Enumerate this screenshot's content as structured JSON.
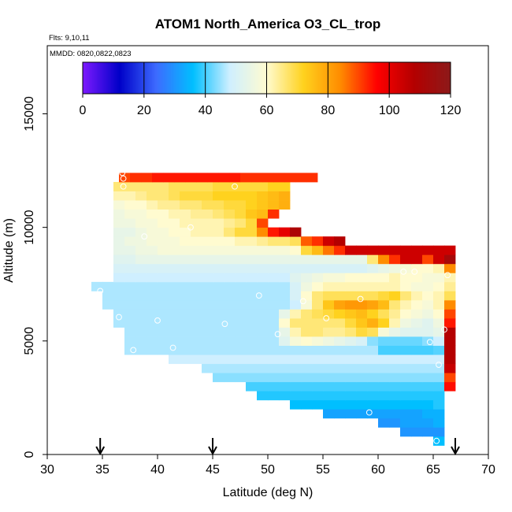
{
  "chart_data": {
    "type": "heatmap",
    "title": "ATOM1 North_America O3_CL_trop",
    "flights_label": "Flts: 9,10,11",
    "dates_label": "MMDD: 0820,0822,0823",
    "xlabel": "Latitude (deg N)",
    "ylabel": "Altitude (m)",
    "xlim": [
      30,
      70
    ],
    "ylim": [
      0,
      18000
    ],
    "x_ticks": [
      30,
      35,
      40,
      45,
      50,
      55,
      60,
      65,
      70
    ],
    "y_ticks": [
      0,
      5000,
      10000,
      15000
    ],
    "colorbar": {
      "range": [
        0,
        120
      ],
      "ticks": [
        0,
        20,
        40,
        60,
        80,
        100,
        120
      ],
      "palette": [
        "#7d1aff",
        "#0000c8",
        "#3d6bff",
        "#00bfff",
        "#cfefff",
        "#fffbd0",
        "#ffd21e",
        "#ff8c00",
        "#ff0000",
        "#b40000",
        "#8c1a1a"
      ]
    },
    "cell_size": {
      "lat": 1.0,
      "alt": 400
    },
    "rows": [
      {
        "alt": 600,
        "lat_start": 65,
        "values": [
          36
        ]
      },
      {
        "alt": 1000,
        "lat_start": 62,
        "values": [
          30,
          30,
          30,
          30
        ]
      },
      {
        "alt": 1400,
        "lat_start": 60,
        "values": [
          30,
          30,
          32,
          32,
          32,
          34
        ]
      },
      {
        "alt": 1800,
        "lat_start": 55,
        "values": [
          32,
          32,
          32,
          32,
          32,
          32,
          32,
          32,
          32,
          34,
          34
        ]
      },
      {
        "alt": 2200,
        "lat_start": 52,
        "values": [
          36,
          36,
          36,
          36,
          36,
          36,
          36,
          36,
          36,
          36,
          36,
          36,
          36,
          38
        ]
      },
      {
        "alt": 2600,
        "lat_start": 49,
        "values": [
          38,
          38,
          38,
          38,
          38,
          38,
          38,
          38,
          38,
          38,
          38,
          38,
          38,
          38,
          38,
          38,
          38
        ]
      },
      {
        "alt": 3000,
        "lat_start": 48,
        "values": [
          40,
          40,
          40,
          40,
          40,
          40,
          40,
          40,
          40,
          40,
          40,
          40,
          40,
          40,
          40,
          40,
          40,
          40,
          95
        ]
      },
      {
        "alt": 3400,
        "lat_start": 45,
        "values": [
          44,
          44,
          44,
          44,
          44,
          44,
          44,
          44,
          44,
          44,
          44,
          44,
          44,
          44,
          44,
          44,
          44,
          44,
          44,
          44,
          44,
          90
        ]
      },
      {
        "alt": 3800,
        "lat_start": 44,
        "values": [
          46,
          46,
          46,
          46,
          46,
          46,
          46,
          46,
          46,
          46,
          46,
          46,
          46,
          46,
          46,
          46,
          46,
          46,
          46,
          46,
          46,
          46,
          105
        ]
      },
      {
        "alt": 4200,
        "lat_start": 41,
        "values": [
          48,
          48,
          48,
          48,
          48,
          48,
          48,
          48,
          48,
          48,
          48,
          48,
          48,
          48,
          48,
          48,
          48,
          48,
          48,
          48,
          48,
          48,
          48,
          48,
          48,
          108
        ]
      },
      {
        "alt": 4600,
        "lat_start": 37,
        "values": [
          46,
          46,
          46,
          46,
          46,
          46,
          46,
          46,
          46,
          46,
          46,
          46,
          46,
          46,
          46,
          46,
          46,
          46,
          46,
          46,
          46,
          46,
          46,
          40,
          40,
          40,
          40,
          40,
          41,
          108
        ]
      },
      {
        "alt": 5000,
        "lat_start": 37,
        "values": [
          46,
          46,
          46,
          46,
          46,
          46,
          46,
          46,
          46,
          46,
          46,
          46,
          46,
          46,
          52,
          58,
          60,
          58,
          56,
          54,
          52,
          50,
          44,
          42,
          42,
          42,
          42,
          44,
          48,
          108
        ]
      },
      {
        "alt": 5400,
        "lat_start": 37,
        "values": [
          46,
          46,
          46,
          46,
          46,
          46,
          46,
          46,
          46,
          46,
          46,
          46,
          46,
          46,
          54,
          62,
          66,
          66,
          64,
          64,
          66,
          70,
          68,
          58,
          54,
          52,
          52,
          52,
          54,
          108
        ]
      },
      {
        "alt": 5800,
        "lat_start": 36,
        "values": [
          46,
          46,
          46,
          46,
          46,
          46,
          46,
          46,
          46,
          46,
          46,
          46,
          46,
          46,
          46,
          60,
          66,
          66,
          66,
          66,
          66,
          70,
          74,
          78,
          72,
          62,
          56,
          54,
          52,
          56,
          94
        ]
      },
      {
        "alt": 6200,
        "lat_start": 36,
        "values": [
          46,
          46,
          46,
          46,
          46,
          46,
          46,
          46,
          46,
          46,
          46,
          46,
          46,
          46,
          46,
          54,
          62,
          66,
          68,
          70,
          72,
          74,
          76,
          72,
          68,
          64,
          60,
          58,
          56,
          60,
          90
        ]
      },
      {
        "alt": 6600,
        "lat_start": 35,
        "values": [
          46,
          46,
          46,
          46,
          46,
          46,
          46,
          46,
          46,
          46,
          46,
          46,
          46,
          46,
          46,
          46,
          46,
          48,
          58,
          66,
          74,
          80,
          82,
          82,
          80,
          76,
          66,
          62,
          60,
          58,
          62,
          84
        ]
      },
      {
        "alt": 7000,
        "lat_start": 35,
        "values": [
          46,
          46,
          46,
          46,
          46,
          46,
          46,
          46,
          46,
          46,
          46,
          46,
          46,
          46,
          46,
          46,
          46,
          50,
          60,
          66,
          68,
          68,
          68,
          68,
          68,
          70,
          72,
          66,
          62,
          60,
          62,
          68
        ]
      },
      {
        "alt": 7400,
        "lat_start": 34,
        "values": [
          46,
          46,
          46,
          46,
          46,
          46,
          46,
          46,
          46,
          46,
          46,
          46,
          46,
          46,
          46,
          46,
          46,
          46,
          50,
          56,
          60,
          62,
          62,
          62,
          62,
          62,
          62,
          62,
          60,
          58,
          58,
          60,
          64
        ]
      },
      {
        "alt": 7800,
        "lat_start": 36,
        "values": [
          48,
          48,
          48,
          48,
          48,
          48,
          48,
          48,
          48,
          48,
          48,
          48,
          48,
          48,
          48,
          48,
          52,
          54,
          56,
          58,
          58,
          60,
          60,
          60,
          60,
          62,
          60,
          60,
          58,
          58,
          62
        ]
      },
      {
        "alt": 8200,
        "lat_start": 36,
        "values": [
          50,
          50,
          50,
          50,
          50,
          50,
          50,
          50,
          50,
          50,
          50,
          50,
          50,
          50,
          50,
          50,
          50,
          50,
          50,
          50,
          50,
          50,
          50,
          52,
          54,
          56,
          58,
          60,
          60,
          62,
          84
        ]
      },
      {
        "alt": 8600,
        "lat_start": 36,
        "values": [
          52,
          52,
          54,
          54,
          54,
          54,
          54,
          54,
          54,
          54,
          54,
          54,
          54,
          54,
          54,
          54,
          54,
          54,
          54,
          54,
          54,
          54,
          54,
          66,
          84,
          92,
          104,
          104,
          90,
          104,
          112
        ]
      },
      {
        "alt": 9000,
        "lat_start": 36,
        "values": [
          54,
          54,
          56,
          56,
          58,
          58,
          58,
          58,
          58,
          58,
          58,
          58,
          58,
          58,
          58,
          58,
          60,
          70,
          76,
          86,
          92,
          104,
          104,
          104,
          104,
          104,
          104,
          104,
          104,
          104,
          104
        ]
      },
      {
        "alt": 9400,
        "lat_start": 36,
        "values": [
          54,
          56,
          56,
          58,
          58,
          58,
          60,
          60,
          60,
          60,
          60,
          62,
          62,
          64,
          66,
          66,
          68,
          88,
          92,
          104,
          108
        ]
      },
      {
        "alt": 9800,
        "lat_start": 36,
        "values": [
          54,
          54,
          56,
          58,
          58,
          60,
          60,
          62,
          62,
          62,
          66,
          70,
          70,
          84,
          94,
          100,
          110
        ]
      },
      {
        "alt": 10200,
        "lat_start": 36,
        "values": [
          56,
          56,
          58,
          58,
          60,
          60,
          62,
          62,
          62,
          62,
          64,
          66,
          70,
          90
        ]
      },
      {
        "alt": 10600,
        "lat_start": 36,
        "values": [
          56,
          58,
          58,
          60,
          60,
          62,
          62,
          64,
          64,
          66,
          68,
          70,
          74,
          76,
          92
        ]
      },
      {
        "alt": 11000,
        "lat_start": 36,
        "values": [
          58,
          60,
          60,
          62,
          64,
          64,
          66,
          66,
          68,
          68,
          70,
          70,
          72,
          74,
          76,
          78
        ]
      },
      {
        "alt": 11400,
        "lat_start": 36,
        "values": [
          62,
          62,
          64,
          66,
          66,
          68,
          70,
          70,
          70,
          72,
          72,
          72,
          72,
          74,
          76,
          78
        ]
      },
      {
        "alt": 11800,
        "lat_start": 36,
        "values": [
          66,
          66,
          66,
          66,
          66,
          68,
          68,
          68,
          68,
          70,
          70,
          70,
          70,
          70,
          72,
          72
        ]
      },
      {
        "alt": 12200,
        "lat_start": 36.5,
        "values": [
          90,
          92,
          92,
          94,
          94,
          94,
          94,
          94,
          94,
          94,
          94,
          92,
          92,
          92,
          92,
          92,
          92,
          92
        ]
      }
    ],
    "flight_points": [
      [
        34.8,
        7200
      ],
      [
        36.5,
        6050
      ],
      [
        37.8,
        4600
      ],
      [
        38.8,
        9600
      ],
      [
        40.0,
        5900
      ],
      [
        41.4,
        4700
      ],
      [
        43.0,
        10000
      ],
      [
        46.1,
        5750
      ],
      [
        49.2,
        7000
      ],
      [
        50.9,
        5300
      ],
      [
        53.2,
        6750
      ],
      [
        55.3,
        6000
      ],
      [
        58.4,
        6850
      ],
      [
        59.2,
        1850
      ],
      [
        62.3,
        8050
      ],
      [
        63.3,
        8050
      ],
      [
        64.7,
        4950
      ],
      [
        65.5,
        3950
      ],
      [
        65.3,
        600
      ],
      [
        66.3,
        7900
      ],
      [
        36.8,
        12400
      ],
      [
        36.9,
        12150
      ],
      [
        36.9,
        11800
      ],
      [
        47.0,
        11800
      ],
      [
        66.0,
        5500
      ],
      [
        34.3,
        7800
      ]
    ],
    "arrows_lat": [
      34.8,
      45.0,
      67.0
    ]
  }
}
